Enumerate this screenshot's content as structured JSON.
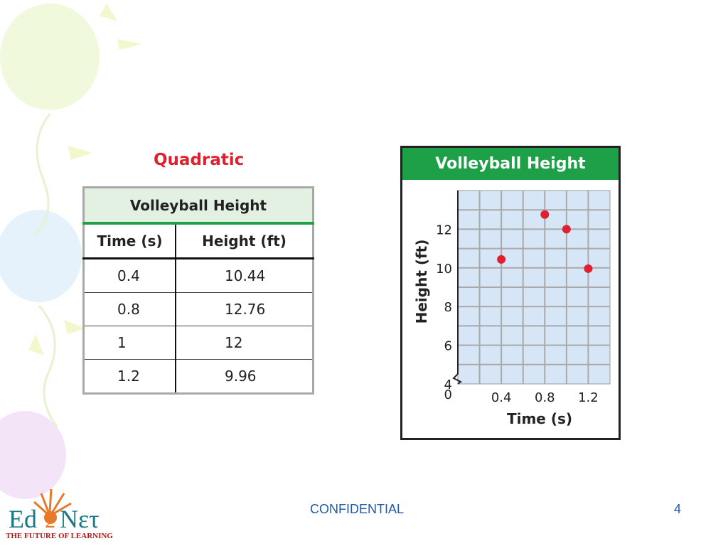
{
  "heading": "Quadratic",
  "table": {
    "title": "Volleyball Height",
    "columns": [
      "Time (s)",
      "Height (ft)"
    ],
    "rows": [
      [
        "0.4",
        "10.44"
      ],
      [
        "0.8",
        "12.76"
      ],
      [
        "1",
        "12"
      ],
      [
        "1.2",
        "9.96"
      ]
    ]
  },
  "chart_data": {
    "type": "scatter",
    "title": "Volleyball Height",
    "xlabel": "Time (s)",
    "ylabel": "Height (ft)",
    "x": [
      0.4,
      0.8,
      1,
      1.2
    ],
    "y": [
      10.44,
      12.76,
      12,
      9.96
    ],
    "xlim": [
      0,
      1.4
    ],
    "ylim": [
      4,
      14
    ],
    "x_ticks": [
      "0.4",
      "0.8",
      "1.2"
    ],
    "y_ticks": [
      "4",
      "6",
      "8",
      "10",
      "12"
    ],
    "origin_label": "0",
    "grid": true,
    "axis_break": "y",
    "point_color": "#e0202e",
    "title_bg_color": "#1ea048",
    "plot_bg_color": "#d6e6f6"
  },
  "footer": {
    "confidential": "CONFIDENTIAL",
    "page_number": "4"
  },
  "logo": {
    "name": "Ed2Nετ",
    "tagline": "THE FUTURE OF LEARNING"
  }
}
